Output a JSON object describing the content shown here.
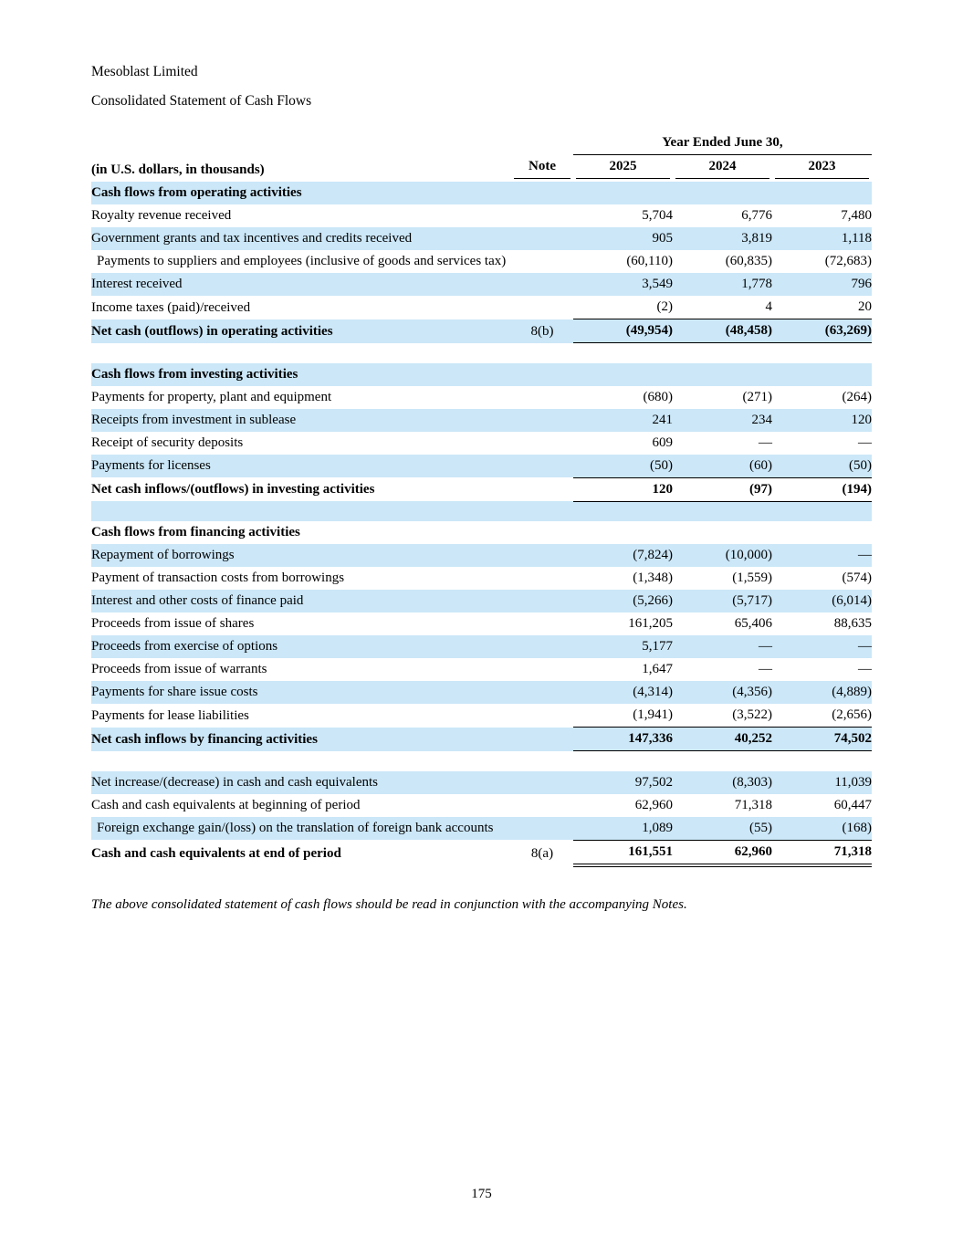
{
  "page": {
    "company": "Mesoblast Limited",
    "title": "Consolidated Statement of Cash Flows",
    "footnote": "The above consolidated statement of cash flows should be read in conjunction with the accompanying Notes.",
    "page_number": "175"
  },
  "colors": {
    "row_highlight": "#cbe7f8",
    "rule": "#000000"
  },
  "table": {
    "year_span_header": "Year Ended June 30,",
    "col_label_header": "(in U.S. dollars, in thousands)",
    "col_note_header": "Note",
    "year_headers": [
      "2025",
      "2024",
      "2023"
    ],
    "rows": [
      {
        "label": "Cash flows from operating activities",
        "bold": true,
        "bg": "blue",
        "values": [
          "",
          "",
          ""
        ]
      },
      {
        "label": "Royalty revenue received",
        "bg": "white",
        "values": [
          "5,704",
          "6,776",
          "7,480"
        ]
      },
      {
        "label": "Government grants and tax incentives and credits received",
        "bg": "blue",
        "values": [
          "905",
          "3,819",
          "1,118"
        ]
      },
      {
        "label": "Payments to suppliers and employees (inclusive of goods and services tax)",
        "bg": "white",
        "wrap": true,
        "values": [
          "(60,110)",
          "(60,835)",
          "(72,683)"
        ]
      },
      {
        "label": "Interest received",
        "bg": "blue",
        "values": [
          "3,549",
          "1,778",
          "796"
        ]
      },
      {
        "label": "Income taxes (paid)/received",
        "bg": "white",
        "values": [
          "(2)",
          "4",
          "20"
        ]
      },
      {
        "label": "Net cash (outflows) in operating activities",
        "note": "8(b)",
        "bold": true,
        "bg": "blue",
        "rule": "single",
        "values": [
          "(49,954)",
          "(48,458)",
          "(63,269)"
        ]
      },
      {
        "blank": true,
        "bg": "white"
      },
      {
        "label": "Cash flows from investing activities",
        "bold": true,
        "bg": "blue",
        "values": [
          "",
          "",
          ""
        ]
      },
      {
        "label": "Payments for property, plant and equipment",
        "bg": "white",
        "values": [
          "(680)",
          "(271)",
          "(264)"
        ]
      },
      {
        "label": "Receipts from investment in sublease",
        "bg": "blue",
        "values": [
          "241",
          "234",
          "120"
        ]
      },
      {
        "label": "Receipt of security deposits",
        "bg": "white",
        "values": [
          "609",
          "—",
          "—"
        ]
      },
      {
        "label": "Payments for licenses",
        "bg": "blue",
        "values": [
          "(50)",
          "(60)",
          "(50)"
        ]
      },
      {
        "label": "Net cash inflows/(outflows) in investing activities",
        "bold": true,
        "bg": "white",
        "rule": "single",
        "values": [
          "120",
          "(97)",
          "(194)"
        ]
      },
      {
        "blank": true,
        "bg": "blue"
      },
      {
        "label": "Cash flows from financing activities",
        "bold": true,
        "bg": "white",
        "values": [
          "",
          "",
          ""
        ]
      },
      {
        "label": "Repayment of borrowings",
        "bg": "blue",
        "values": [
          "(7,824)",
          "(10,000)",
          "—"
        ]
      },
      {
        "label": "Payment of transaction costs from borrowings",
        "bg": "white",
        "values": [
          "(1,348)",
          "(1,559)",
          "(574)"
        ]
      },
      {
        "label": "Interest and other costs of finance paid",
        "bg": "blue",
        "values": [
          "(5,266)",
          "(5,717)",
          "(6,014)"
        ]
      },
      {
        "label": "Proceeds from issue of shares",
        "bg": "white",
        "values": [
          "161,205",
          "65,406",
          "88,635"
        ]
      },
      {
        "label": "Proceeds from exercise of options",
        "bg": "blue",
        "values": [
          "5,177",
          "—",
          "—"
        ]
      },
      {
        "label": "Proceeds from issue of warrants",
        "bg": "white",
        "values": [
          "1,647",
          "—",
          "—"
        ]
      },
      {
        "label": "Payments for share issue costs",
        "bg": "blue",
        "values": [
          "(4,314)",
          "(4,356)",
          "(4,889)"
        ]
      },
      {
        "label": "Payments for lease liabilities",
        "bg": "white",
        "values": [
          "(1,941)",
          "(3,522)",
          "(2,656)"
        ]
      },
      {
        "label": "Net cash inflows by financing activities",
        "bold": true,
        "bg": "blue",
        "rule": "single",
        "values": [
          "147,336",
          "40,252",
          "74,502"
        ]
      },
      {
        "blank": true,
        "bg": "white"
      },
      {
        "label": "Net increase/(decrease) in cash and cash equivalents",
        "bg": "blue",
        "values": [
          "97,502",
          "(8,303)",
          "11,039"
        ]
      },
      {
        "label": "Cash and cash equivalents at beginning of period",
        "bg": "white",
        "values": [
          "62,960",
          "71,318",
          "60,447"
        ]
      },
      {
        "label": "Foreign exchange gain/(loss) on the translation of foreign bank accounts",
        "bg": "blue",
        "wrap": true,
        "values": [
          "1,089",
          "(55)",
          "(168)"
        ]
      },
      {
        "label": "Cash and cash equivalents at end of period",
        "note": "8(a)",
        "bold": true,
        "bg": "white",
        "rule": "total",
        "values": [
          "161,551",
          "62,960",
          "71,318"
        ]
      }
    ]
  }
}
